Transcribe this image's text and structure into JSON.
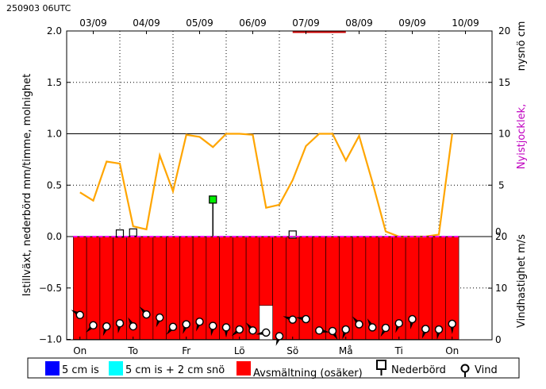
{
  "header": {
    "run_label": "250903 06UTC"
  },
  "chart_data": {
    "type": "bar",
    "title": "",
    "dates_top": [
      "03/09",
      "04/09",
      "05/09",
      "06/09",
      "07/09",
      "08/09",
      "09/09",
      "10/09"
    ],
    "days_bottom": [
      "On",
      "To",
      "Fr",
      "Lö",
      "Sö",
      "Må",
      "Ti",
      "On"
    ],
    "ylabel_left": "Istillväxt, nederbörd mm/timme, molnighet",
    "ylabel_right_top_a": "nysnö cm",
    "ylabel_right_top_b": "Nyistjocklek,",
    "ylabel_right_bottom": "Vindhastighet m/s",
    "left_axis": {
      "ylim": [
        -1.0,
        2.0
      ],
      "ticks": [
        "2.0",
        "1.5",
        "1.0",
        "0.5",
        "0.0",
        "−0.5",
        "−1.0"
      ]
    },
    "right_axis_top": {
      "ticks": [
        "20",
        "15",
        "10",
        "5",
        "0"
      ]
    },
    "right_axis_bottom": {
      "ticks": [
        "20",
        "10",
        "0"
      ]
    },
    "grid": true,
    "colors": {
      "cloudiness_line": "#ffa500",
      "melt_bars": "#ff0000",
      "ice_5cm": "#0000ff",
      "ice_5cm_snow": "#00ffff",
      "new_ice_axis_label": "#c000c0",
      "zero_line": "#ff00ff",
      "precip_marker": "#00ee00"
    },
    "series": [
      {
        "kind": "cloudiness_line",
        "x_hours": [
          6,
          12,
          18,
          24,
          30,
          36,
          42,
          48,
          54,
          60,
          66,
          72,
          78,
          84,
          90,
          96,
          102,
          108,
          114,
          120,
          126,
          132,
          138,
          144,
          150,
          156,
          162,
          168,
          174
        ],
        "values": [
          0.43,
          0.35,
          0.73,
          0.71,
          0.1,
          0.07,
          0.79,
          0.44,
          0.99,
          0.97,
          0.87,
          1.0,
          1.0,
          0.99,
          0.28,
          0.31,
          0.55,
          0.88,
          1.0,
          1.0,
          0.74,
          0.98,
          0.53,
          0.05,
          0.0,
          0.0,
          0.0,
          0.02,
          1.0
        ]
      },
      {
        "kind": "melt_bars",
        "x_hours": [
          6,
          12,
          18,
          24,
          30,
          36,
          42,
          48,
          54,
          60,
          66,
          72,
          78,
          84,
          90,
          96,
          102,
          108,
          114,
          120,
          126,
          132,
          138,
          144,
          150,
          156,
          162,
          168,
          174
        ],
        "values": [
          -1,
          -1,
          -1,
          -1,
          -1,
          -1,
          -1,
          -1,
          -1,
          -1,
          -1,
          -1,
          -1,
          -1,
          -0.67,
          -1,
          -1,
          -1,
          -1,
          -1,
          -1,
          -1,
          -1,
          -1,
          -1,
          -1,
          -1,
          -1,
          -1
        ]
      },
      {
        "kind": "precip_markers",
        "x_hours": [
          24,
          30,
          66,
          102
        ],
        "values": [
          0.03,
          0.04,
          0.36,
          0.02
        ],
        "highlight": [
          false,
          false,
          true,
          false
        ]
      },
      {
        "kind": "wind",
        "x_hours": [
          6,
          12,
          18,
          24,
          30,
          36,
          42,
          48,
          54,
          60,
          66,
          72,
          78,
          84,
          90,
          96,
          102,
          108,
          114,
          120,
          126,
          132,
          138,
          144,
          150,
          156,
          162,
          168,
          174
        ],
        "speed_ms": [
          4.8,
          2.8,
          2.6,
          3.2,
          2.6,
          4.9,
          4.3,
          2.5,
          3.0,
          3.5,
          2.7,
          2.4,
          2.0,
          1.8,
          1.4,
          0.7,
          3.9,
          4.0,
          1.8,
          1.7,
          2.0,
          3.0,
          2.4,
          2.3,
          3.2,
          4.0,
          2.1,
          2.0,
          3.1
        ],
        "dir_deg": [
          300,
          225,
          200,
          190,
          330,
          320,
          200,
          220,
          200,
          200,
          190,
          180,
          230,
          320,
          260,
          200,
          290,
          280,
          100,
          150,
          200,
          320,
          330,
          210,
          200,
          190,
          200,
          190,
          180
        ]
      }
    ],
    "top_bar": {
      "x_start_hours": 102,
      "x_end_hours": 126
    },
    "legend": [
      {
        "label": "5 cm is",
        "swatch": "blue"
      },
      {
        "label": "5 cm is + 2 cm snö",
        "swatch": "cyan"
      },
      {
        "label": "Avsmältning (osäker)",
        "swatch": "red"
      },
      {
        "label": "Nederbörd",
        "swatch": "precip"
      },
      {
        "label": "Vind",
        "swatch": "wind"
      }
    ]
  }
}
